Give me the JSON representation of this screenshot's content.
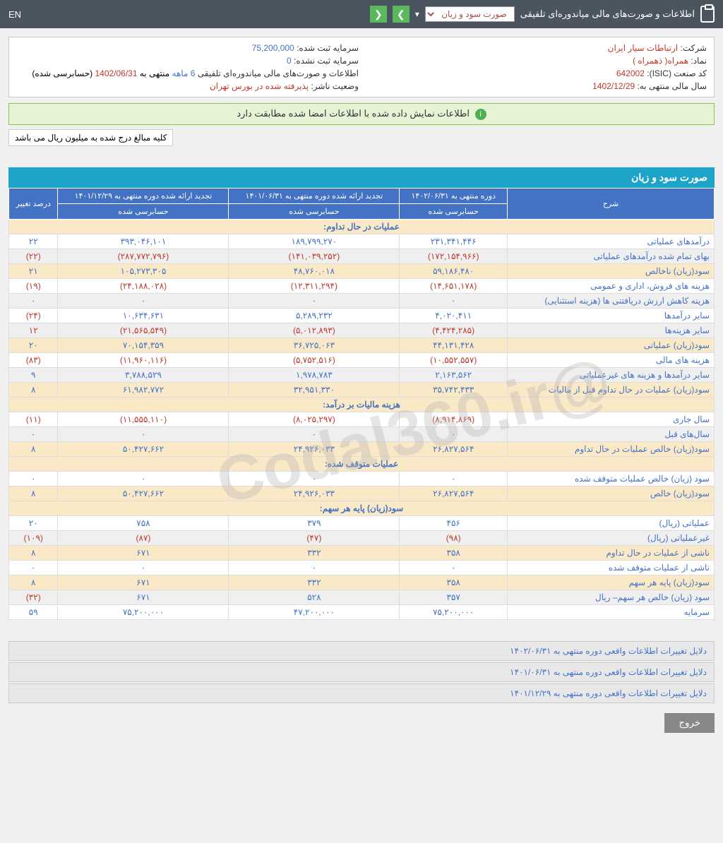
{
  "top": {
    "title": "اطلاعات و صورت‌های مالی میاندوره‌ای تلفیقی",
    "dropdown": "صورت سود و زیان",
    "en": "EN"
  },
  "info": {
    "company_label": "شرکت:",
    "company": "ارتباطات سیار ایران",
    "symbol_label": "نماد:",
    "symbol": "همراه( ذهمراه )",
    "isic_label": "کد صنعت (ISIC):",
    "isic": "642002",
    "year_label": "سال مالی منتهی به:",
    "year": "1402/12/29",
    "capital_reg_label": "سرمایه ثبت شده:",
    "capital_reg": "75,200,000",
    "capital_unreg_label": "سرمایه ثبت نشده:",
    "capital_unreg": "0",
    "report_label": "اطلاعات و صورت‌های مالی میاندوره‌ای تلفیقی",
    "report_period": "6 ماهه",
    "report_end": "منتهی به",
    "report_date": "1402/06/31",
    "report_status": "(حسابرسی شده)",
    "publisher_label": "وضعیت ناشر:",
    "publisher": "پذیرفته شده در بورس تهران"
  },
  "alert": "اطلاعات نمایش داده شده با اطلاعات امضا شده مطابقت دارد",
  "note": "کلیه مبالغ درج شده به میلیون ریال می باشد",
  "section_title": "صورت سود و زیان",
  "table": {
    "headers": {
      "desc": "شرح",
      "col1_top": "دوره منتهی به ۱۴۰۲/۰۶/۳۱",
      "col2_top": "تجدید ارائه شده دوره منتهی به ۱۴۰۱/۰۶/۳۱",
      "col3_top": "تجدید ارائه شده دوره منتهی به ۱۴۰۱/۱۲/۲۹",
      "change": "درصد تغییر",
      "audited": "حسابرسی شده"
    },
    "groups": [
      {
        "label": "عملیات در حال تداوم:"
      },
      {
        "rows": [
          {
            "desc": "درآمدهای عملیاتی",
            "c1": "۲۳۱,۳۴۱,۴۴۶",
            "c2": "۱۸۹,۷۹۹,۲۷۰",
            "c3": "۳۹۳,۰۴۶,۱۰۱",
            "chg": "۲۲",
            "alt": false
          },
          {
            "desc": "بهای تمام شده درآمدهای عملیاتی",
            "c1": "(۱۷۲,۱۵۴,۹۶۶)",
            "c2": "(۱۴۱,۰۳۹,۲۵۲)",
            "c3": "(۲۸۷,۷۷۲,۷۹۶)",
            "chg": "(۲۲)",
            "neg": true,
            "alt": true
          },
          {
            "desc": "سود(زیان) ناخالص",
            "c1": "۵۹,۱۸۶,۴۸۰",
            "c2": "۴۸,۷۶۰,۰۱۸",
            "c3": "۱۰۵,۲۷۳,۳۰۵",
            "chg": "۲۱",
            "yellow": true
          },
          {
            "desc": "هزینه های فروش، اداری و عمومی",
            "c1": "(۱۴,۶۵۱,۱۷۸)",
            "c2": "(۱۲,۳۱۱,۲۹۴)",
            "c3": "(۲۴,۱۸۸,۰۲۸)",
            "chg": "(۱۹)",
            "neg": true,
            "alt": false
          },
          {
            "desc": "هزینه کاهش ارزش دریافتنی ها (هزینه استثنایی)",
            "c1": "۰",
            "c2": "۰",
            "c3": "۰",
            "chg": "۰",
            "alt": true
          },
          {
            "desc": "سایر درآمدها",
            "c1": "۴,۰۲۰,۴۱۱",
            "c2": "۵,۲۸۹,۲۳۲",
            "c3": "۱۰,۶۳۴,۶۳۱",
            "chg": "(۲۴)",
            "chgneg": true,
            "alt": false
          },
          {
            "desc": "سایر هزینه‌ها",
            "c1": "(۴,۴۲۴,۲۸۵)",
            "c2": "(۵,۰۱۲,۸۹۳)",
            "c3": "(۲۱,۵۶۵,۵۴۹)",
            "chg": "۱۲",
            "neg": true,
            "alt": true
          },
          {
            "desc": "سود(زیان) عملیاتی",
            "c1": "۴۴,۱۳۱,۴۲۸",
            "c2": "۳۶,۷۲۵,۰۶۳",
            "c3": "۷۰,۱۵۴,۳۵۹",
            "chg": "۲۰",
            "yellow": true
          },
          {
            "desc": "هزینه های مالی",
            "c1": "(۱۰,۵۵۲,۵۵۷)",
            "c2": "(۵,۷۵۲,۵۱۶)",
            "c3": "(۱۱,۹۶۰,۱۱۶)",
            "chg": "(۸۳)",
            "neg": true,
            "alt": false
          },
          {
            "desc": "سایر درآمدها و هزینه های غیرعملیاتی",
            "c1": "۲,۱۶۳,۵۶۲",
            "c2": "۱,۹۷۸,۷۸۳",
            "c3": "۳,۷۸۸,۵۲۹",
            "chg": "۹",
            "alt": true
          },
          {
            "desc": "سود(زیان) عملیات در حال تداوم قبل از مالیات",
            "c1": "۳۵,۷۴۲,۴۳۳",
            "c2": "۳۲,۹۵۱,۳۳۰",
            "c3": "۶۱,۹۸۲,۷۷۲",
            "chg": "۸",
            "yellow": true
          }
        ]
      },
      {
        "label": "هزینه مالیات بر درآمد:"
      },
      {
        "rows": [
          {
            "desc": "سال جاری",
            "c1": "(۸,۹۱۴,۸۶۹)",
            "c2": "(۸,۰۲۵,۲۹۷)",
            "c3": "(۱۱,۵۵۵,۱۱۰)",
            "chg": "(۱۱)",
            "neg": true,
            "alt": false
          },
          {
            "desc": "سال‌های قبل",
            "c1": "۰",
            "c2": "۰",
            "c3": "۰",
            "chg": "۰",
            "alt": true
          },
          {
            "desc": "سود(زیان) خالص عملیات در حال تداوم",
            "c1": "۲۶,۸۲۷,۵۶۴",
            "c2": "۲۴,۹۲۶,۰۳۳",
            "c3": "۵۰,۴۲۷,۶۶۲",
            "chg": "۸",
            "yellow": true
          }
        ]
      },
      {
        "label": "عملیات متوقف شده:"
      },
      {
        "rows": [
          {
            "desc": "سود (زیان) خالص عملیات متوقف شده",
            "c1": "۰",
            "c2": "۰",
            "c3": "۰",
            "chg": "۰",
            "alt": false
          },
          {
            "desc": "سود(زیان) خالص",
            "c1": "۲۶,۸۲۷,۵۶۴",
            "c2": "۲۴,۹۲۶,۰۳۳",
            "c3": "۵۰,۴۲۷,۶۶۲",
            "chg": "۸",
            "yellow": true
          }
        ]
      },
      {
        "label": "سود(زیان) پایه هر سهم:"
      },
      {
        "rows": [
          {
            "desc": "عملیاتی (ریال)",
            "c1": "۴۵۶",
            "c2": "۳۷۹",
            "c3": "۷۵۸",
            "chg": "۲۰",
            "alt": false
          },
          {
            "desc": "غیرعملیاتی (ریال)",
            "c1": "(۹۸)",
            "c2": "(۴۷)",
            "c3": "(۸۷)",
            "chg": "(۱۰۹)",
            "neg": true,
            "alt": true
          },
          {
            "desc": "ناشی از عملیات در حال تداوم",
            "c1": "۳۵۸",
            "c2": "۳۳۲",
            "c3": "۶۷۱",
            "chg": "۸",
            "yellow": true
          },
          {
            "desc": "ناشی از عملیات متوقف شده",
            "c1": "۰",
            "c2": "۰",
            "c3": "۰",
            "chg": "۰",
            "alt": false
          },
          {
            "desc": "سود(زیان) پایه هر سهم",
            "c1": "۳۵۸",
            "c2": "۳۳۲",
            "c3": "۶۷۱",
            "chg": "۸",
            "yellow": true
          },
          {
            "desc": "سود (زیان) خالص هر سهم– ریال",
            "c1": "۳۵۷",
            "c2": "۵۲۸",
            "c3": "۶۷۱",
            "chg": "(۳۲)",
            "chgneg": true,
            "alt": true
          },
          {
            "desc": "سرمایه",
            "c1": "۷۵,۲۰۰,۰۰۰",
            "c2": "۴۷,۲۰۰,۰۰۰",
            "c3": "۷۵,۲۰۰,۰۰۰",
            "chg": "۵۹",
            "alt": false
          }
        ]
      }
    ]
  },
  "reasons": [
    "دلایل تغییرات اطلاعات واقعی دوره منتهی به ۱۴۰۲/۰۶/۳۱",
    "دلایل تغییرات اطلاعات واقعی دوره منتهی به ۱۴۰۱/۰۶/۳۱",
    "دلایل تغییرات اطلاعات واقعی دوره منتهی به ۱۴۰۱/۱۲/۲۹"
  ],
  "exit": "خروج",
  "watermark": "@Codal360.ir"
}
